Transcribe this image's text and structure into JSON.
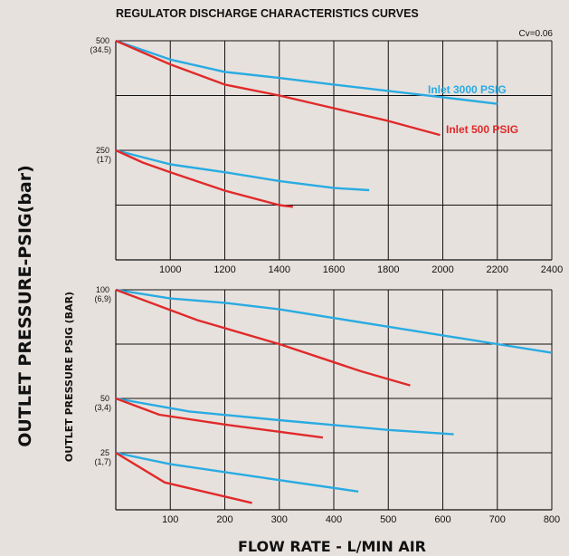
{
  "title": "REGULATOR DISCHARGE CHARACTERISTICS CURVES",
  "outer_ylabel": "OUTLET PRESSURE-PSIG(bar)",
  "inner_ylabel": "OUTLET PRESSURE PSIG (BAR)",
  "xlabel": "FLOW RATE - L/MIN AIR",
  "colors": {
    "inlet_3000": "#29abe2",
    "inlet_500": "#e02a2a",
    "grid": "#111111",
    "background": "#e6e1dd"
  },
  "chart_data": [
    {
      "type": "line",
      "note": "Cv=0.06",
      "xlim": [
        800,
        2400
      ],
      "x_ticks": [
        "1000",
        "1200",
        "1400",
        "1600",
        "1800",
        "2000",
        "2200",
        "2400"
      ],
      "x_tick_values": [
        1000,
        1200,
        1400,
        1600,
        1800,
        2000,
        2200,
        2400
      ],
      "ylim": [
        0,
        500
      ],
      "y_grid": [
        500,
        375,
        250,
        125
      ],
      "y_ticks": [
        {
          "value": 500,
          "line1": "500",
          "line2": "(34.5)"
        },
        {
          "value": 250,
          "line1": "250",
          "line2": "(17)"
        }
      ],
      "legend": [
        {
          "label": "Inlet  3000  PSIG",
          "color": "#29abe2"
        },
        {
          "label": "Inlet  500  PSIG",
          "color": "#e02a2a"
        }
      ],
      "series": [
        {
          "name": "Inlet  3000  PSIG",
          "color": "#29abe2",
          "points": [
            [
              800,
              500
            ],
            [
              1000,
              457
            ],
            [
              1200,
              429
            ],
            [
              1400,
              415
            ],
            [
              1600,
              400
            ],
            [
              2000,
              371
            ],
            [
              2200,
              356
            ]
          ]
        },
        {
          "name": "Inlet  500  PSIG",
          "color": "#e02a2a",
          "points": [
            [
              800,
              500
            ],
            [
              1000,
              446
            ],
            [
              1200,
              400
            ],
            [
              1400,
              375
            ],
            [
              1600,
              346
            ],
            [
              1800,
              317
            ],
            [
              1990,
              285
            ]
          ]
        },
        {
          "color": "#29abe2",
          "points": [
            [
              800,
              250
            ],
            [
              1000,
              218
            ],
            [
              1200,
              200
            ],
            [
              1400,
              180
            ],
            [
              1600,
              164
            ],
            [
              1730,
              159
            ]
          ]
        },
        {
          "color": "#e02a2a",
          "points": [
            [
              800,
              250
            ],
            [
              900,
              222
            ],
            [
              1000,
              200
            ],
            [
              1200,
              158
            ],
            [
              1400,
              125
            ],
            [
              1450,
              121
            ]
          ]
        }
      ]
    },
    {
      "type": "line",
      "xlim": [
        0,
        800
      ],
      "x_ticks": [
        "100",
        "200",
        "300",
        "400",
        "500",
        "600",
        "700",
        "800"
      ],
      "x_tick_values": [
        100,
        200,
        300,
        400,
        500,
        600,
        700,
        800
      ],
      "y_grid_labeled": [
        {
          "line1": "100",
          "line2": "(6,9)"
        },
        {
          "line1": "50",
          "line2": "(3,4)"
        },
        {
          "line1": "25",
          "line2": "(1,7)"
        }
      ],
      "bands": [
        {
          "top": 100,
          "series": [
            {
              "name": "Inlet  3000  PSIG",
              "color": "#29abe2",
              "points": [
                [
                  0,
                  100
                ],
                [
                  100,
                  92
                ],
                [
                  200,
                  88
                ],
                [
                  300,
                  82
                ],
                [
                  400,
                  74
                ],
                [
                  500,
                  66
                ],
                [
                  600,
                  58
                ],
                [
                  700,
                  50
                ],
                [
                  800,
                  42
                ]
              ]
            },
            {
              "name": "Inlet  500  PSIG",
              "color": "#e02a2a",
              "points": [
                [
                  0,
                  100
                ],
                [
                  150,
                  72
                ],
                [
                  300,
                  50
                ],
                [
                  450,
                  25
                ],
                [
                  540,
                  12
                ]
              ]
            }
          ]
        },
        {
          "top": 50,
          "series": [
            {
              "name": "Inlet  3000  PSIG",
              "color": "#29abe2",
              "points": [
                [
                  0,
                  50
                ],
                [
                  135,
                  38
                ],
                [
                  300,
                  30
                ],
                [
                  500,
                  21
                ],
                [
                  620,
                  17
                ]
              ]
            },
            {
              "name": "Inlet  500  PSIG",
              "color": "#e02a2a",
              "points": [
                [
                  0,
                  50
                ],
                [
                  80,
                  35
                ],
                [
                  200,
                  26
                ],
                [
                  380,
                  14
                ]
              ]
            }
          ]
        },
        {
          "top": 25,
          "series": [
            {
              "name": "Inlet  3000  PSIG",
              "color": "#29abe2",
              "points": [
                [
                  0,
                  25
                ],
                [
                  100,
                  20
                ],
                [
                  300,
                  13
                ],
                [
                  445,
                  8
                ]
              ]
            },
            {
              "name": "Inlet  500  PSIG",
              "color": "#e02a2a",
              "points": [
                [
                  0,
                  25
                ],
                [
                  90,
                  12
                ],
                [
                  250,
                  3
                ]
              ]
            }
          ]
        }
      ]
    }
  ]
}
